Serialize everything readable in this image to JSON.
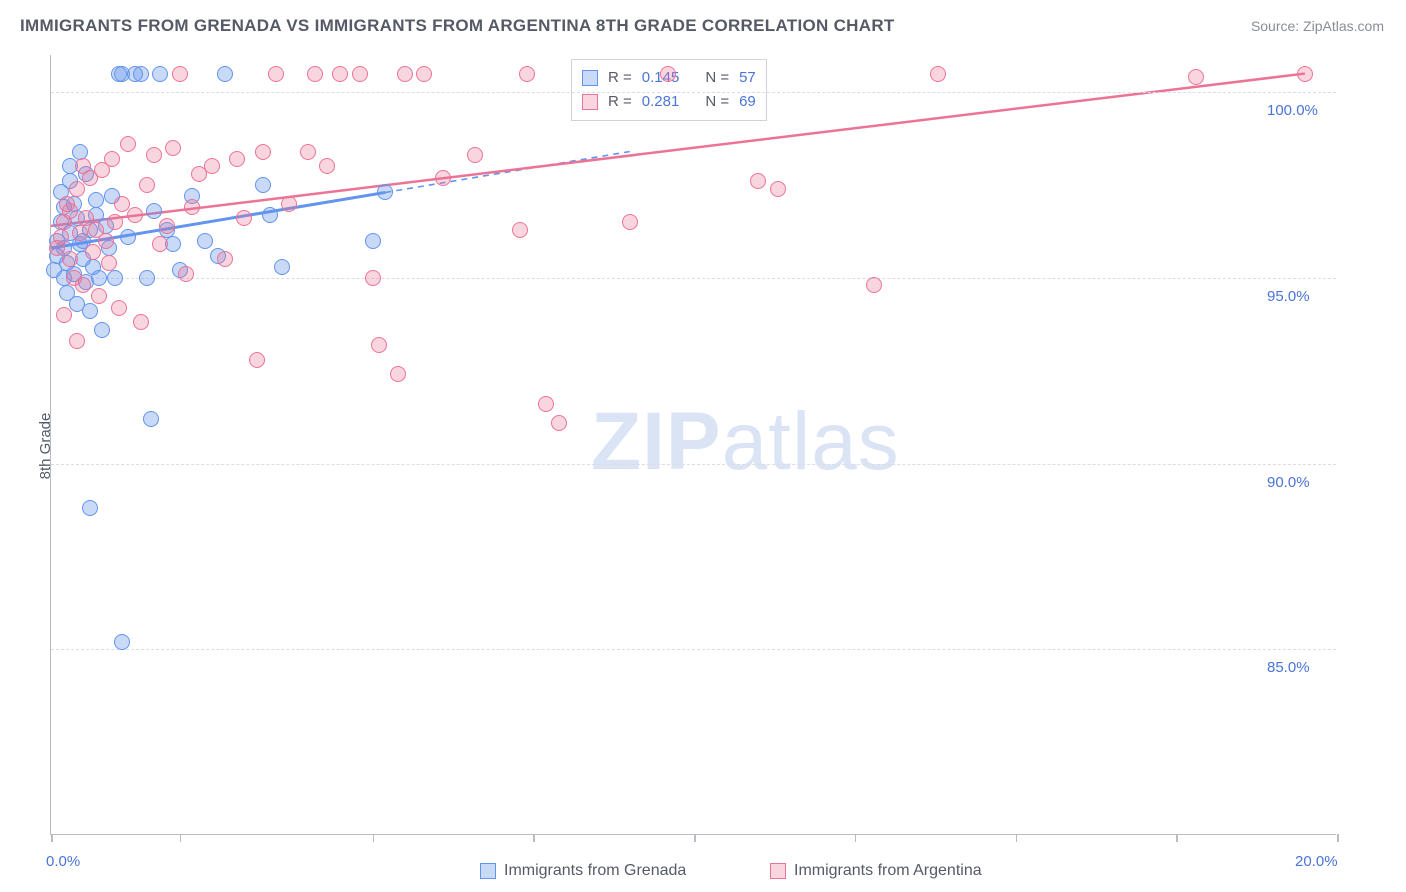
{
  "title": "IMMIGRANTS FROM GRENADA VS IMMIGRANTS FROM ARGENTINA 8TH GRADE CORRELATION CHART",
  "source_label": "Source: ZipAtlas.com",
  "ylabel": "8th Grade",
  "watermark": {
    "zip": "ZIP",
    "atlas": "atlas"
  },
  "chart": {
    "type": "scatter",
    "xlim": [
      0.0,
      20.0
    ],
    "ylim": [
      80.0,
      101.0
    ],
    "x_ticks": [
      0.0,
      2.0,
      5.0,
      7.5,
      10.0,
      12.5,
      15.0,
      17.5,
      20.0
    ],
    "x_tick_labels_shown": {
      "0.0": "0.0%",
      "20.0": "20.0%"
    },
    "y_gridlines": [
      85.0,
      90.0,
      95.0,
      100.0
    ],
    "y_tick_labels": {
      "85.0": "85.0%",
      "90.0": "90.0%",
      "95.0": "95.0%",
      "100.0": "100.0%"
    },
    "grid_color": "#dcdde2",
    "axis_color": "#b9bcc4",
    "background_color": "#ffffff",
    "label_color": "#4a74d6",
    "title_color": "#555a66",
    "marker_radius": 8,
    "series": [
      {
        "id": "grenada",
        "label": "Immigrants from Grenada",
        "color_fill": "rgba(99,148,238,0.35)",
        "color_stroke": "#6394ee",
        "R": 0.145,
        "N": 57,
        "trend": {
          "x1": 0.0,
          "y1": 95.8,
          "x2": 5.2,
          "y2": 97.3,
          "solid": true,
          "dash_extend": {
            "x2": 9.0,
            "y2": 98.4
          }
        },
        "points": [
          [
            0.05,
            95.2
          ],
          [
            0.1,
            95.6
          ],
          [
            0.1,
            96.0
          ],
          [
            0.15,
            96.5
          ],
          [
            0.15,
            97.3
          ],
          [
            0.2,
            95.0
          ],
          [
            0.2,
            95.8
          ],
          [
            0.2,
            96.9
          ],
          [
            0.25,
            94.6
          ],
          [
            0.25,
            95.4
          ],
          [
            0.3,
            96.2
          ],
          [
            0.3,
            97.6
          ],
          [
            0.3,
            98.0
          ],
          [
            0.35,
            95.1
          ],
          [
            0.35,
            97.0
          ],
          [
            0.4,
            96.6
          ],
          [
            0.4,
            94.3
          ],
          [
            0.45,
            95.9
          ],
          [
            0.45,
            98.4
          ],
          [
            0.5,
            96.0
          ],
          [
            0.5,
            95.5
          ],
          [
            0.55,
            94.9
          ],
          [
            0.55,
            97.8
          ],
          [
            0.6,
            96.3
          ],
          [
            0.6,
            94.1
          ],
          [
            0.65,
            95.3
          ],
          [
            0.7,
            97.1
          ],
          [
            0.7,
            96.7
          ],
          [
            0.75,
            95.0
          ],
          [
            0.8,
            93.6
          ],
          [
            0.85,
            96.4
          ],
          [
            0.9,
            95.8
          ],
          [
            0.95,
            97.2
          ],
          [
            1.0,
            95.0
          ],
          [
            1.05,
            100.5
          ],
          [
            1.1,
            100.5
          ],
          [
            1.2,
            96.1
          ],
          [
            1.3,
            100.5
          ],
          [
            1.4,
            100.5
          ],
          [
            1.5,
            95.0
          ],
          [
            1.55,
            91.2
          ],
          [
            1.6,
            96.8
          ],
          [
            1.7,
            100.5
          ],
          [
            1.8,
            96.3
          ],
          [
            1.9,
            95.9
          ],
          [
            2.0,
            95.2
          ],
          [
            2.2,
            97.2
          ],
          [
            2.4,
            96.0
          ],
          [
            2.6,
            95.6
          ],
          [
            2.7,
            100.5
          ],
          [
            3.3,
            97.5
          ],
          [
            3.4,
            96.7
          ],
          [
            3.6,
            95.3
          ],
          [
            5.0,
            96.0
          ],
          [
            5.2,
            97.3
          ],
          [
            0.6,
            88.8
          ],
          [
            1.1,
            85.2
          ]
        ]
      },
      {
        "id": "argentina",
        "label": "Immigrants from Argentina",
        "color_fill": "rgba(235,115,150,0.30)",
        "color_stroke": "#eb7396",
        "R": 0.281,
        "N": 69,
        "trend": {
          "x1": 0.0,
          "y1": 96.4,
          "x2": 19.5,
          "y2": 100.5,
          "solid": true
        },
        "points": [
          [
            0.1,
            95.8
          ],
          [
            0.15,
            96.1
          ],
          [
            0.2,
            96.5
          ],
          [
            0.2,
            94.0
          ],
          [
            0.25,
            97.0
          ],
          [
            0.3,
            95.5
          ],
          [
            0.3,
            96.8
          ],
          [
            0.35,
            95.0
          ],
          [
            0.4,
            97.4
          ],
          [
            0.4,
            93.3
          ],
          [
            0.45,
            96.2
          ],
          [
            0.5,
            94.8
          ],
          [
            0.5,
            98.0
          ],
          [
            0.55,
            96.6
          ],
          [
            0.6,
            97.7
          ],
          [
            0.65,
            95.7
          ],
          [
            0.7,
            96.3
          ],
          [
            0.75,
            94.5
          ],
          [
            0.8,
            97.9
          ],
          [
            0.85,
            96.0
          ],
          [
            0.9,
            95.4
          ],
          [
            0.95,
            98.2
          ],
          [
            1.0,
            96.5
          ],
          [
            1.05,
            94.2
          ],
          [
            1.1,
            97.0
          ],
          [
            1.2,
            98.6
          ],
          [
            1.3,
            96.7
          ],
          [
            1.4,
            93.8
          ],
          [
            1.5,
            97.5
          ],
          [
            1.6,
            98.3
          ],
          [
            1.7,
            95.9
          ],
          [
            1.8,
            96.4
          ],
          [
            1.9,
            98.5
          ],
          [
            2.0,
            100.5
          ],
          [
            2.1,
            95.1
          ],
          [
            2.2,
            96.9
          ],
          [
            2.3,
            97.8
          ],
          [
            2.5,
            98.0
          ],
          [
            2.7,
            95.5
          ],
          [
            2.9,
            98.2
          ],
          [
            3.0,
            96.6
          ],
          [
            3.2,
            92.8
          ],
          [
            3.3,
            98.4
          ],
          [
            3.5,
            100.5
          ],
          [
            3.7,
            97.0
          ],
          [
            4.0,
            98.4
          ],
          [
            4.1,
            100.5
          ],
          [
            4.3,
            98.0
          ],
          [
            4.5,
            100.5
          ],
          [
            4.8,
            100.5
          ],
          [
            5.0,
            95.0
          ],
          [
            5.1,
            93.2
          ],
          [
            5.4,
            92.4
          ],
          [
            5.5,
            100.5
          ],
          [
            5.8,
            100.5
          ],
          [
            6.1,
            97.7
          ],
          [
            6.6,
            98.3
          ],
          [
            7.3,
            96.3
          ],
          [
            7.7,
            91.6
          ],
          [
            7.4,
            100.5
          ],
          [
            7.9,
            91.1
          ],
          [
            9.0,
            96.5
          ],
          [
            9.6,
            100.5
          ],
          [
            11.0,
            97.6
          ],
          [
            11.3,
            97.4
          ],
          [
            12.8,
            94.8
          ],
          [
            13.8,
            100.5
          ],
          [
            17.8,
            100.4
          ],
          [
            19.5,
            100.5
          ]
        ]
      }
    ]
  },
  "stat_box": {
    "rows": [
      {
        "swatch": "blue",
        "R_label": "R =",
        "R": "0.145",
        "N_label": "N =",
        "N": "57"
      },
      {
        "swatch": "pink",
        "R_label": "R =",
        "R": "0.281",
        "N_label": "N =",
        "N": "69"
      }
    ]
  },
  "legend": [
    {
      "swatch": "blue",
      "label": "Immigrants from Grenada"
    },
    {
      "swatch": "pink",
      "label": "Immigrants from Argentina"
    }
  ]
}
